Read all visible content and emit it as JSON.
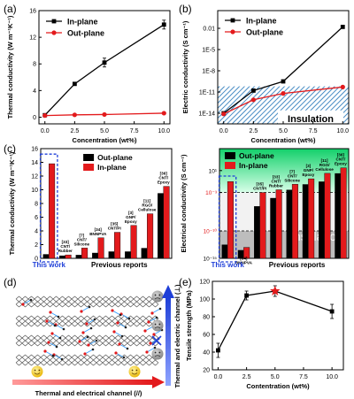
{
  "chart_data": [
    {
      "panel": "(a)",
      "type": "line",
      "xlabel": "Concentration (wt%)",
      "ylabel": "Thermal conductivity (W m⁻¹K⁻¹)",
      "xlim": [
        -0.5,
        10.5
      ],
      "ylim": [
        -1,
        16
      ],
      "xticks": [
        "0.0",
        "2.5",
        "5.0",
        "7.5",
        "10.0"
      ],
      "yticks": [
        "0",
        "4",
        "8",
        "12",
        "16"
      ],
      "legend": "top-left",
      "series": [
        {
          "name": "In-plane",
          "color": "#000000",
          "x": [
            0,
            2.5,
            5,
            10
          ],
          "y": [
            0.3,
            5.0,
            8.2,
            13.9
          ]
        },
        {
          "name": "Out-plane",
          "color": "#e31a1c",
          "x": [
            0,
            2.5,
            5,
            10
          ],
          "y": [
            0.25,
            0.35,
            0.4,
            0.6
          ]
        }
      ]
    },
    {
      "panel": "(b)",
      "type": "line",
      "xlabel": "Concentration (wt%)",
      "ylabel": "Electric conductivity (S cm⁻¹)",
      "yscale": "log",
      "xlim": [
        -0.5,
        10.5
      ],
      "ylim_exp": [
        -15.5,
        0.5
      ],
      "xticks": [
        "0.0",
        "2.5",
        "5.0",
        "7.5",
        "10.0"
      ],
      "yticks": [
        "0.01",
        "1E-5",
        "1E-8",
        "1E-11",
        "1E-14"
      ],
      "annotation": "Insulation",
      "legend": "top-left",
      "series": [
        {
          "name": "In-plane",
          "color": "#000000",
          "x": [
            0,
            2.5,
            5,
            10
          ],
          "log_y": [
            -14,
            -10.8,
            -9.5,
            -1.8
          ]
        },
        {
          "name": "Out-plane",
          "color": "#e31a1c",
          "x": [
            0,
            2.5,
            5,
            10
          ],
          "log_y": [
            -14.1,
            -12.1,
            -11.2,
            -10.3
          ]
        }
      ]
    },
    {
      "panel": "(c)",
      "type": "bar",
      "ylabel": "Thermal conductivity (W m⁻¹K⁻¹)",
      "ylim": [
        0,
        16
      ],
      "yticks": [
        "0",
        "2",
        "4",
        "6",
        "8",
        "10",
        "12",
        "14",
        "16"
      ],
      "highlight_label": "This work",
      "xlabel": "Previous reports",
      "legend": "top-right",
      "series_names": [
        "Out-plane",
        "In-plane"
      ],
      "groups": [
        {
          "label": "",
          "out": 0.6,
          "in": 13.8
        },
        {
          "label": "[33] CNT/ Rubber",
          "out": 0.4,
          "in": 0.5
        },
        {
          "label": "[7] CNT/ Silicone",
          "out": 0.5,
          "in": 1.5
        },
        {
          "label": "[34] BNNPVA",
          "out": 0.8,
          "in": 3.0
        },
        {
          "label": "[35] CNT/PI",
          "out": 1.0,
          "in": 3.8
        },
        {
          "label": "[3] GNP/ Epoxy",
          "out": 1.0,
          "in": 4.8
        },
        {
          "label": "[11] RGO/ Cellulose",
          "out": 1.5,
          "in": 6.5
        },
        {
          "label": "[36] CNT/ Epoxy",
          "out": 9.5,
          "in": 10.5
        }
      ]
    },
    {
      "panel": "(c-right)",
      "type": "bar",
      "ylabel": "Electrical conductivity (S cm⁻¹)",
      "yscale": "log",
      "ylim_exp": [
        -15,
        5
      ],
      "yticks": [
        "10¹",
        "10⁻³",
        "10⁻¹⁰",
        "10⁻¹⁵"
      ],
      "annotation": "Insulation",
      "highlight_label": "This work",
      "xlabel": "Previous reports",
      "legend": "top-left",
      "series_names": [
        "Out-plane",
        "In-plane"
      ],
      "groups": [
        {
          "label": "",
          "out": -12.5,
          "in": -1.0
        },
        {
          "label": "[34] BNNPVA",
          "out": -13.5,
          "in": -13.0
        },
        {
          "label": "[35] CNT/PI",
          "out": -5.5,
          "in": -3.0
        },
        {
          "label": "[33] CNT/ Rubber",
          "out": -4.0,
          "in": -2.5
        },
        {
          "label": "[7] CNT/ Silicone",
          "out": -2.5,
          "in": -1.5
        },
        {
          "label": "[3] GNP/ Epoxy",
          "out": -1.5,
          "in": -0.5
        },
        {
          "label": "[11] RGO/ Cellulose",
          "out": -1.0,
          "in": 0.5
        },
        {
          "label": "[36] CNT/ Epoxy",
          "out": 0.5,
          "in": 1.5
        }
      ]
    },
    {
      "panel": "(e)",
      "type": "line",
      "xlabel": "Contentration (wt%)",
      "ylabel": "Tensile strength (MPa)",
      "xlim": [
        -0.5,
        11
      ],
      "ylim": [
        20,
        120
      ],
      "xticks": [
        "0.0",
        "2.5",
        "5.0",
        "7.5",
        "10.0"
      ],
      "yticks": [
        "20",
        "40",
        "60",
        "80",
        "100",
        "120"
      ],
      "highlight_x": 5.0,
      "series": [
        {
          "name": "",
          "color": "#000000",
          "x": [
            0,
            2.5,
            5,
            10
          ],
          "y": [
            42,
            104,
            109,
            86
          ],
          "err": [
            8,
            5,
            6,
            8
          ]
        }
      ]
    }
  ],
  "labels": {
    "a": "(a)",
    "b": "(b)",
    "c": "(c)",
    "d": "(d)",
    "e": "(e)"
  },
  "diagram": {
    "bottom_label": "Thermal and electrical channel (//)",
    "side_label": "Thermal and electric channel (⊥)"
  },
  "colors": {
    "red": "#e31a1c",
    "black": "#000000",
    "blue": "#1f3fd8",
    "green": "#2ee88a",
    "hatch": "#1a6fb5"
  }
}
